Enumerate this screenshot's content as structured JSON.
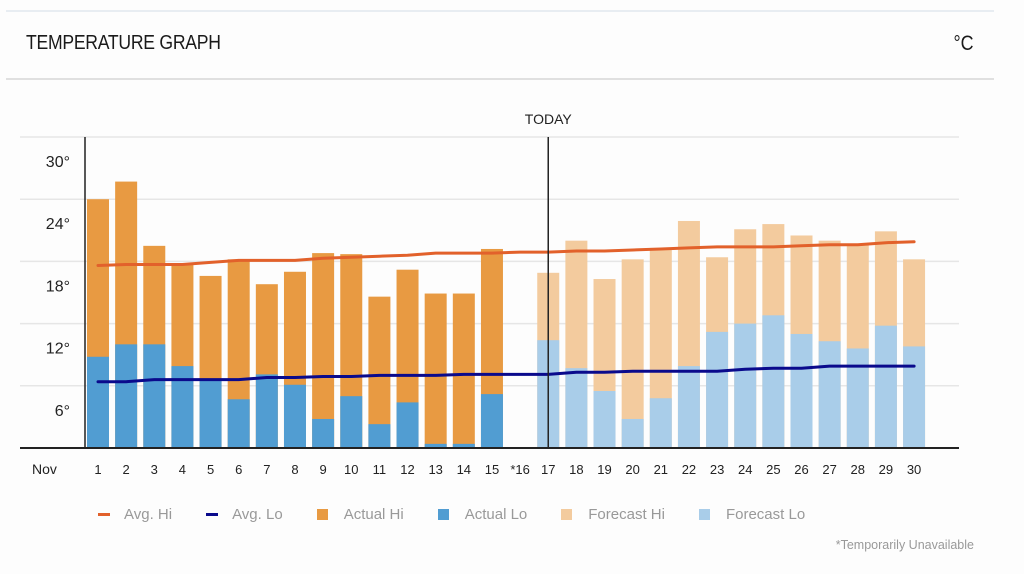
{
  "header": {
    "title": "TEMPERATURE GRAPH",
    "unit": "°C"
  },
  "colors": {
    "avg_hi": "#e2612b",
    "avg_lo": "#0a0a8c",
    "actual_hi": "#e89a42",
    "actual_lo": "#519dd2",
    "forecast_hi": "#f3cb9e",
    "forecast_lo": "#a9cde9"
  },
  "legend": [
    {
      "key": "avg_hi",
      "label": "Avg. Hi",
      "kind": "line"
    },
    {
      "key": "avg_lo",
      "label": "Avg. Lo",
      "kind": "line"
    },
    {
      "key": "actual_hi",
      "label": "Actual Hi",
      "kind": "box"
    },
    {
      "key": "actual_lo",
      "label": "Actual Lo",
      "kind": "box"
    },
    {
      "key": "forecast_hi",
      "label": "Forecast Hi",
      "kind": "box"
    },
    {
      "key": "forecast_lo",
      "label": "Forecast Lo",
      "kind": "box"
    }
  ],
  "footnote": "*Temporarily Unavailable",
  "chart_data": {
    "type": "bar",
    "title": "TEMPERATURE GRAPH",
    "xlabel": "Nov",
    "ylabel": "°C",
    "ylim": [
      0,
      30
    ],
    "yticks": [
      6,
      12,
      18,
      24,
      30
    ],
    "ytick_labels": [
      "6°",
      "12°",
      "18°",
      "24°",
      "30°"
    ],
    "grid": true,
    "today_label": "TODAY",
    "today_day": 17,
    "categories": [
      "1",
      "2",
      "3",
      "4",
      "5",
      "6",
      "7",
      "8",
      "9",
      "10",
      "11",
      "12",
      "13",
      "14",
      "15",
      "*16",
      "17",
      "18",
      "19",
      "20",
      "21",
      "22",
      "23",
      "24",
      "25",
      "26",
      "27",
      "28",
      "29",
      "30"
    ],
    "series": [
      {
        "name": "Actual Hi",
        "values": [
          24,
          25.7,
          19.5,
          17.8,
          16.6,
          18.2,
          15.8,
          17,
          18.8,
          18.7,
          14.6,
          17.2,
          14.9,
          14.9,
          19.2,
          null,
          null,
          null,
          null,
          null,
          null,
          null,
          null,
          null,
          null,
          null,
          null,
          null,
          null,
          null
        ]
      },
      {
        "name": "Actual Lo",
        "values": [
          8.8,
          10,
          10,
          7.9,
          6.5,
          4.7,
          7.1,
          6.1,
          2.8,
          5,
          2.3,
          4.4,
          0.4,
          0.4,
          5.2,
          null,
          null,
          null,
          null,
          null,
          null,
          null,
          null,
          null,
          null,
          null,
          null,
          null,
          null,
          null
        ]
      },
      {
        "name": "Forecast Hi",
        "values": [
          null,
          null,
          null,
          null,
          null,
          null,
          null,
          null,
          null,
          null,
          null,
          null,
          null,
          null,
          null,
          null,
          16.9,
          20,
          16.3,
          18.2,
          19.3,
          21.9,
          18.4,
          21.1,
          21.6,
          20.5,
          20,
          19.7,
          20.9,
          18.2
        ]
      },
      {
        "name": "Forecast Lo",
        "values": [
          null,
          null,
          null,
          null,
          null,
          null,
          null,
          null,
          null,
          null,
          null,
          null,
          null,
          null,
          null,
          null,
          10.4,
          7.7,
          5.5,
          2.8,
          4.8,
          7.9,
          11.2,
          12,
          12.8,
          11,
          10.3,
          9.6,
          11.8,
          9.8
        ]
      },
      {
        "name": "Avg. Hi",
        "type": "line",
        "values": [
          17.6,
          17.7,
          17.7,
          17.7,
          17.9,
          18.1,
          18.1,
          18.1,
          18.3,
          18.4,
          18.5,
          18.6,
          18.8,
          18.8,
          18.8,
          18.9,
          18.9,
          19.0,
          19.0,
          19.1,
          19.2,
          19.3,
          19.4,
          19.4,
          19.4,
          19.5,
          19.6,
          19.6,
          19.8,
          19.9
        ]
      },
      {
        "name": "Avg. Lo",
        "type": "line",
        "values": [
          6.4,
          6.4,
          6.6,
          6.6,
          6.6,
          6.6,
          6.8,
          6.8,
          6.9,
          6.9,
          7.0,
          7.0,
          7.0,
          7.1,
          7.1,
          7.1,
          7.1,
          7.3,
          7.3,
          7.4,
          7.4,
          7.4,
          7.4,
          7.6,
          7.7,
          7.7,
          7.9,
          7.9,
          7.9,
          7.9
        ]
      }
    ]
  }
}
